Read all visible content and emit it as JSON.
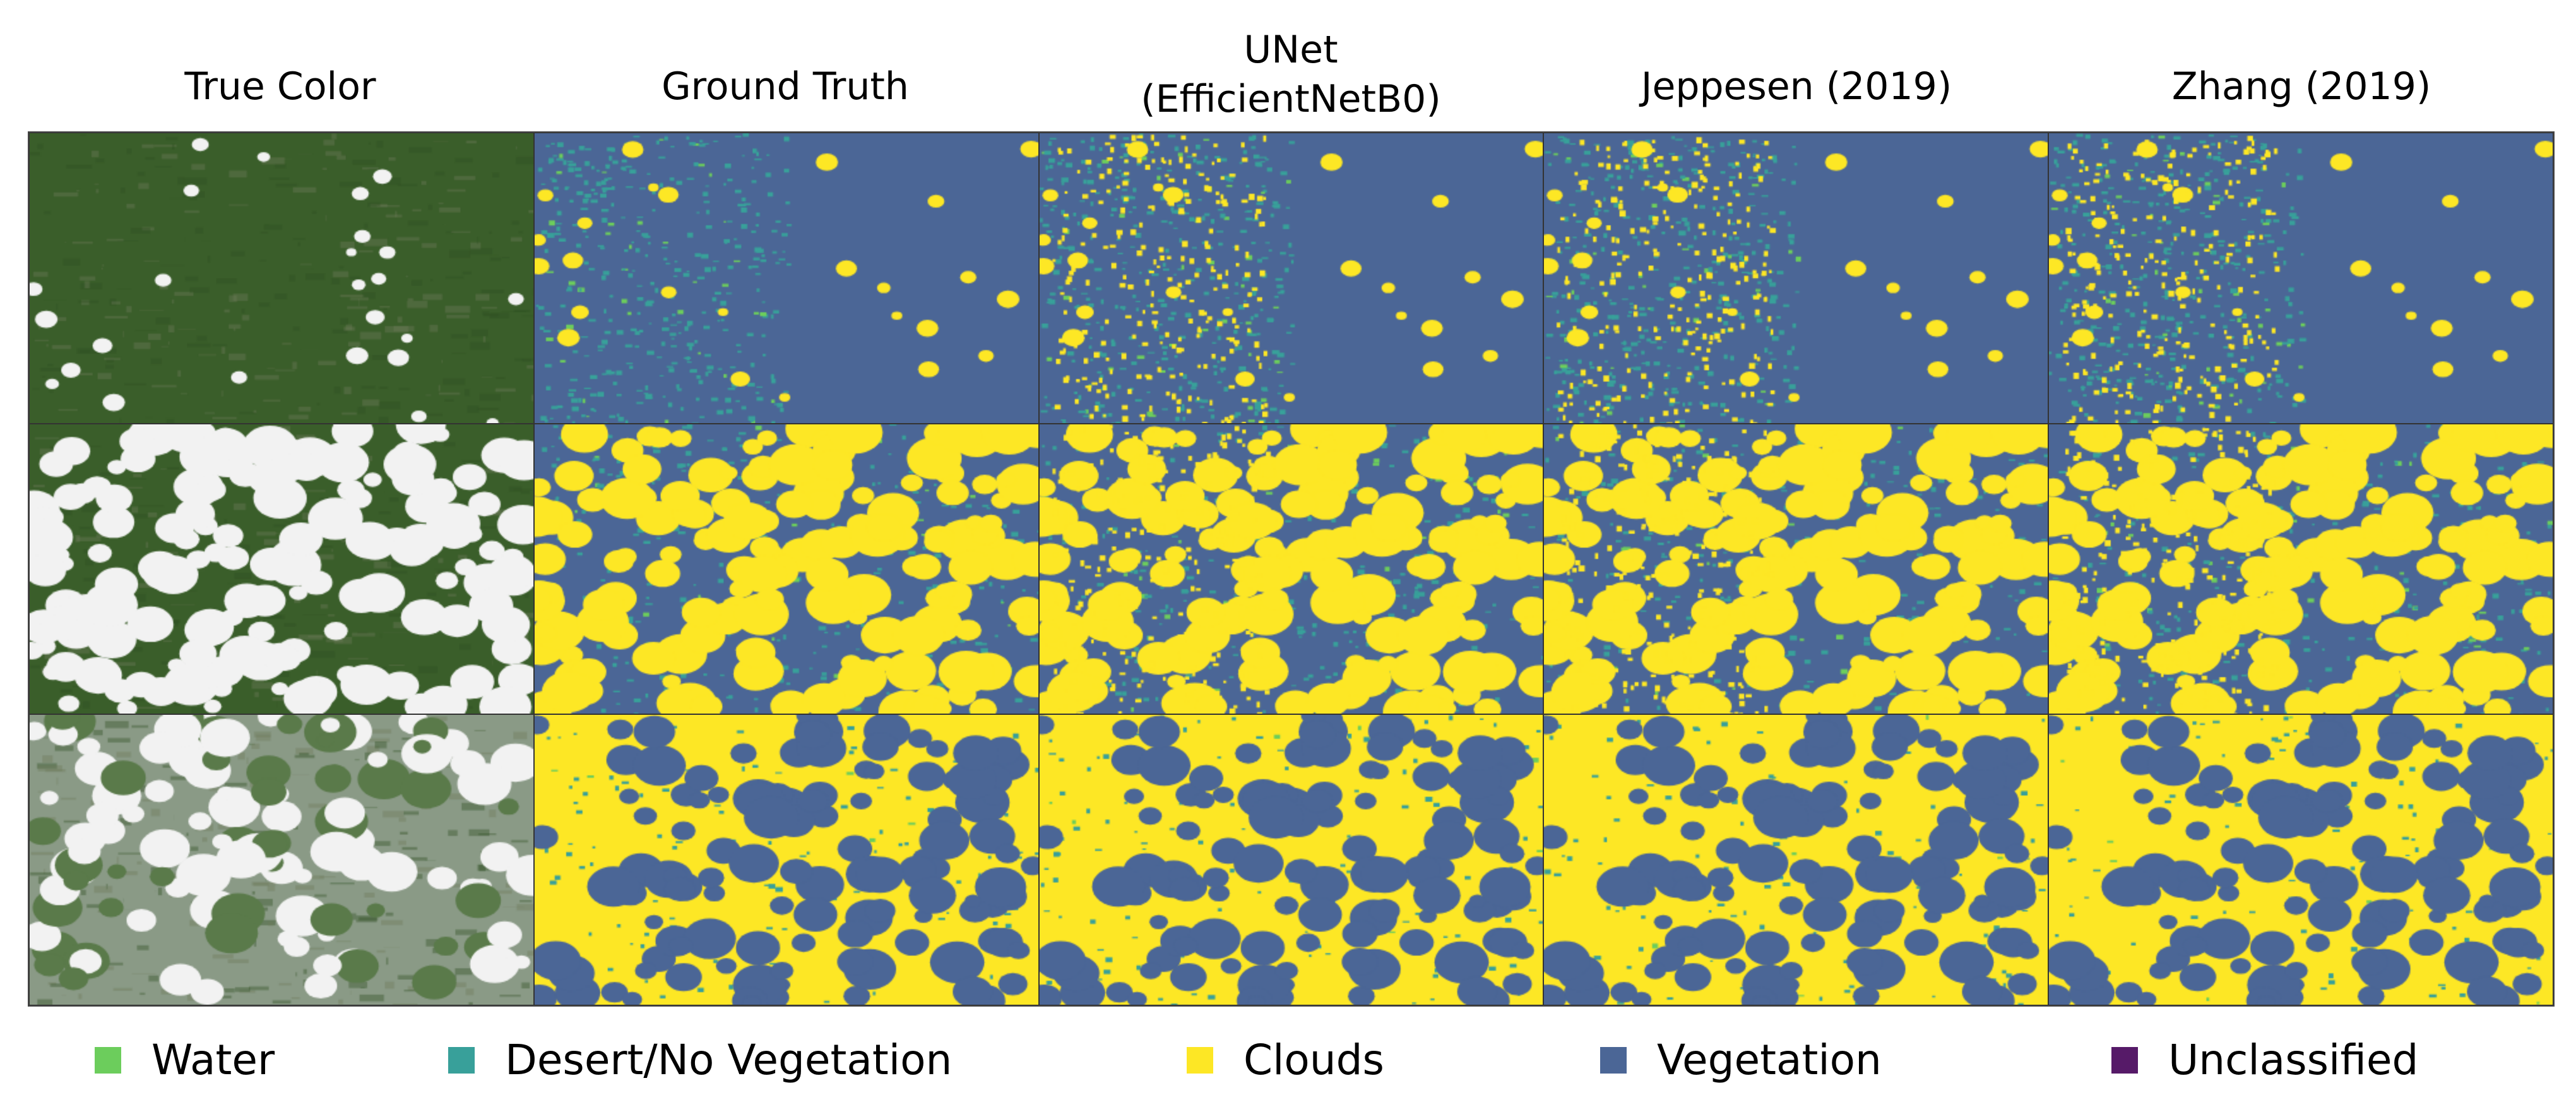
{
  "columns": [
    {
      "title": "True Color"
    },
    {
      "title": "Ground Truth"
    },
    {
      "title": "UNet\n(EfficientNetB0)"
    },
    {
      "title": "Jeppesen (2019)"
    },
    {
      "title": "Zhang (2019)"
    }
  ],
  "legend": [
    {
      "label": "Water",
      "color": "#6ccd5c"
    },
    {
      "label": "Desert/No Vegetation",
      "color": "#38a09a"
    },
    {
      "label": "Clouds",
      "color": "#fde725"
    },
    {
      "label": "Vegetation",
      "color": "#4b6696"
    },
    {
      "label": "Unclassified",
      "color": "#561a68"
    }
  ]
}
